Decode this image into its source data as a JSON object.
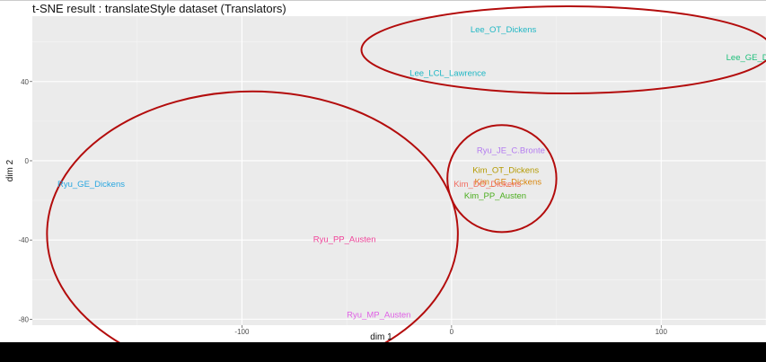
{
  "chart_data": {
    "type": "scatter",
    "title": "t-SNE result : translateStyle dataset (Translators)",
    "xlabel": "dim 1",
    "ylabel": "dim 2",
    "xlim": [
      -200,
      150
    ],
    "ylim": [
      -83,
      73
    ],
    "x_ticks": [
      -100,
      0,
      100
    ],
    "y_ticks": [
      -80,
      -40,
      0,
      40
    ],
    "grid": true,
    "legend": "none",
    "points": [
      {
        "label": "Lee_OT_Dickens",
        "x": 9,
        "y": 66,
        "color": "#1fb7c4"
      },
      {
        "label": "Lee_LCL_Lawrence",
        "x": -20,
        "y": 44,
        "color": "#1fb7c4"
      },
      {
        "label": "Lee_GE_Dickens",
        "x": 131,
        "y": 52,
        "color": "#1dbf7a"
      },
      {
        "label": "Ryu_JE_C.Bronte",
        "x": 12,
        "y": 5,
        "color": "#b47cf0"
      },
      {
        "label": "Kim_OT_Dickens",
        "x": 10,
        "y": -5,
        "color": "#b49a00"
      },
      {
        "label": "Kim_GE_Dickens",
        "x": 11,
        "y": -11,
        "color": "#d9860c"
      },
      {
        "label": "Kim_DO_Dickens",
        "x": 1,
        "y": -12,
        "color": "#f26d61"
      },
      {
        "label": "Kim_PP_Austen",
        "x": 6,
        "y": -18,
        "color": "#4cae1f"
      },
      {
        "label": "Ryu_GE_Dickens",
        "x": -188,
        "y": -12,
        "color": "#27a6e0"
      },
      {
        "label": "Ryu_PP_Austen",
        "x": -66,
        "y": -40,
        "color": "#f0459a"
      },
      {
        "label": "Ryu_MP_Austen",
        "x": -50,
        "y": -78,
        "color": "#e061e6"
      }
    ],
    "annotations": [
      {
        "type": "ellipse",
        "cx": 55,
        "cy": 56,
        "rx": 98,
        "ry": 22,
        "color": "#b30c0c"
      },
      {
        "type": "ellipse",
        "cx": 24,
        "cy": -9,
        "rx": 26,
        "ry": 27,
        "color": "#b30c0c"
      },
      {
        "type": "ellipse",
        "cx": -95,
        "cy": -37,
        "rx": 98,
        "ry": 72,
        "color": "#b30c0c"
      }
    ]
  }
}
